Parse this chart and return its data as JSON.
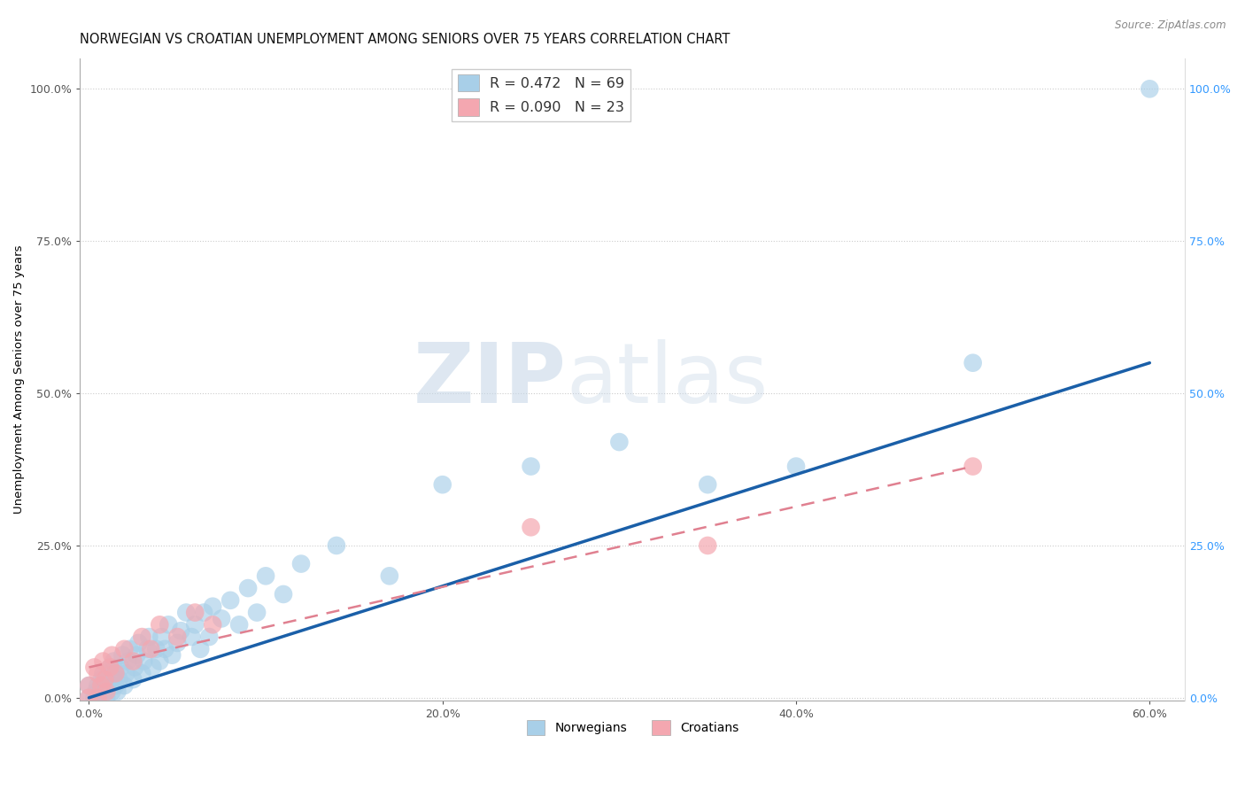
{
  "title": "NORWEGIAN VS CROATIAN UNEMPLOYMENT AMONG SENIORS OVER 75 YEARS CORRELATION CHART",
  "source": "Source: ZipAtlas.com",
  "ylabel": "Unemployment Among Seniors over 75 years",
  "xlim": [
    -0.005,
    0.62
  ],
  "ylim": [
    -0.005,
    1.05
  ],
  "norwegian_x": [
    0.0,
    0.0,
    0.003,
    0.004,
    0.005,
    0.005,
    0.006,
    0.007,
    0.008,
    0.008,
    0.009,
    0.01,
    0.01,
    0.011,
    0.012,
    0.013,
    0.013,
    0.014,
    0.015,
    0.015,
    0.016,
    0.017,
    0.018,
    0.019,
    0.02,
    0.021,
    0.022,
    0.023,
    0.025,
    0.026,
    0.027,
    0.028,
    0.03,
    0.031,
    0.033,
    0.034,
    0.036,
    0.038,
    0.04,
    0.041,
    0.043,
    0.045,
    0.047,
    0.05,
    0.052,
    0.055,
    0.058,
    0.06,
    0.063,
    0.065,
    0.068,
    0.07,
    0.075,
    0.08,
    0.085,
    0.09,
    0.095,
    0.1,
    0.11,
    0.12,
    0.14,
    0.17,
    0.2,
    0.25,
    0.3,
    0.35,
    0.4,
    0.5,
    0.6
  ],
  "norwegian_y": [
    0.0,
    0.02,
    0.0,
    0.01,
    0.0,
    0.02,
    0.01,
    0.03,
    0.02,
    0.04,
    0.01,
    0.0,
    0.03,
    0.02,
    0.05,
    0.01,
    0.03,
    0.06,
    0.02,
    0.04,
    0.01,
    0.03,
    0.05,
    0.07,
    0.02,
    0.04,
    0.06,
    0.08,
    0.03,
    0.05,
    0.07,
    0.09,
    0.04,
    0.06,
    0.08,
    0.1,
    0.05,
    0.08,
    0.06,
    0.1,
    0.08,
    0.12,
    0.07,
    0.09,
    0.11,
    0.14,
    0.1,
    0.12,
    0.08,
    0.14,
    0.1,
    0.15,
    0.13,
    0.16,
    0.12,
    0.18,
    0.14,
    0.2,
    0.17,
    0.22,
    0.25,
    0.2,
    0.35,
    0.38,
    0.42,
    0.35,
    0.38,
    0.55,
    1.0
  ],
  "croatian_x": [
    0.0,
    0.0,
    0.003,
    0.005,
    0.005,
    0.007,
    0.008,
    0.009,
    0.01,
    0.012,
    0.013,
    0.015,
    0.02,
    0.025,
    0.03,
    0.035,
    0.04,
    0.05,
    0.06,
    0.07,
    0.25,
    0.35,
    0.5
  ],
  "croatian_y": [
    0.0,
    0.02,
    0.05,
    0.0,
    0.04,
    0.02,
    0.06,
    0.03,
    0.01,
    0.05,
    0.07,
    0.04,
    0.08,
    0.06,
    0.1,
    0.08,
    0.12,
    0.1,
    0.14,
    0.12,
    0.28,
    0.25,
    0.38
  ],
  "nor_line_start_x": 0.0,
  "nor_line_start_y": 0.0,
  "nor_line_end_x": 0.6,
  "nor_line_end_y": 0.55,
  "cro_line_start_x": 0.0,
  "cro_line_start_y": 0.05,
  "cro_line_end_x": 0.5,
  "cro_line_end_y": 0.38,
  "norwegian_color": "#a8cfe8",
  "croatian_color": "#f4a7b0",
  "norwegian_line_color": "#1a5fa8",
  "croatian_line_color": "#e08090",
  "norwegian_R": "0.472",
  "norwegian_N": "69",
  "croatian_R": "0.090",
  "croatian_N": "23",
  "legend_labels": [
    "Norwegians",
    "Croatians"
  ],
  "watermark_zip": "ZIP",
  "watermark_atlas": "atlas",
  "title_fontsize": 10.5,
  "label_fontsize": 9.5,
  "tick_fontsize": 9,
  "right_tick_color": "#3399ff",
  "xtick_vals": [
    0.0,
    0.2,
    0.4,
    0.6
  ],
  "xtick_labels": [
    "0.0%",
    "20.0%",
    "40.0%",
    "60.0%"
  ],
  "ytick_vals": [
    0.0,
    0.25,
    0.5,
    0.75,
    1.0
  ],
  "ytick_labels": [
    "0.0%",
    "25.0%",
    "50.0%",
    "75.0%",
    "100.0%"
  ]
}
